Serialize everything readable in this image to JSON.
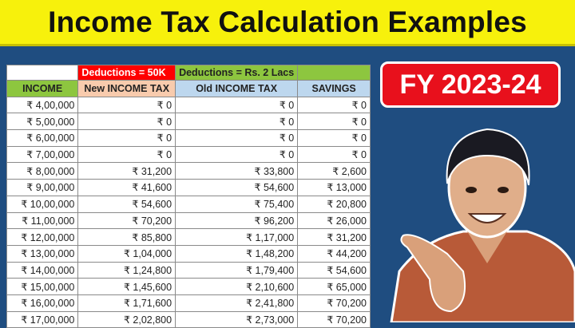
{
  "title": "Income Tax Calculation Examples",
  "badge": "FY 2023-24",
  "colors": {
    "banner": "#f7f10c",
    "background": "#1f4d80",
    "badge": "#e8101c",
    "green": "#8dc63f",
    "peach": "#f8cbad",
    "lightblue": "#bdd7ee",
    "red": "#ff0000"
  },
  "table": {
    "group_headers": [
      "",
      "Deductions = 50K",
      "Deductions = Rs. 2 Lacs",
      ""
    ],
    "headers": [
      "INCOME",
      "New INCOME TAX",
      "Old INCOME TAX",
      "SAVINGS"
    ],
    "rows": [
      [
        "₹ 4,00,000",
        "₹ 0",
        "₹ 0",
        "₹ 0"
      ],
      [
        "₹ 5,00,000",
        "₹ 0",
        "₹ 0",
        "₹ 0"
      ],
      [
        "₹ 6,00,000",
        "₹ 0",
        "₹ 0",
        "₹ 0"
      ],
      [
        "₹ 7,00,000",
        "₹ 0",
        "₹ 0",
        "₹ 0"
      ],
      [
        "₹ 8,00,000",
        "₹ 31,200",
        "₹ 33,800",
        "₹ 2,600"
      ],
      [
        "₹ 9,00,000",
        "₹ 41,600",
        "₹ 54,600",
        "₹ 13,000"
      ],
      [
        "₹ 10,00,000",
        "₹ 54,600",
        "₹ 75,400",
        "₹ 20,800"
      ],
      [
        "₹ 11,00,000",
        "₹ 70,200",
        "₹ 96,200",
        "₹ 26,000"
      ],
      [
        "₹ 12,00,000",
        "₹ 85,800",
        "₹ 1,17,000",
        "₹ 31,200"
      ],
      [
        "₹ 13,00,000",
        "₹ 1,04,000",
        "₹ 1,48,200",
        "₹ 44,200"
      ],
      [
        "₹ 14,00,000",
        "₹ 1,24,800",
        "₹ 1,79,400",
        "₹ 54,600"
      ],
      [
        "₹ 15,00,000",
        "₹ 1,45,600",
        "₹ 2,10,600",
        "₹ 65,000"
      ],
      [
        "₹ 16,00,000",
        "₹ 1,71,600",
        "₹ 2,41,800",
        "₹ 70,200"
      ],
      [
        "₹ 17,00,000",
        "₹ 2,02,800",
        "₹ 2,73,000",
        "₹ 70,200"
      ]
    ]
  }
}
